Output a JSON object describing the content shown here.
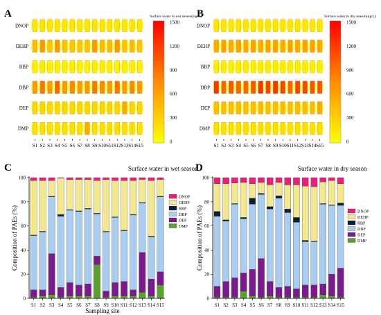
{
  "figure": {
    "sites": [
      "S1",
      "S2",
      "S3",
      "S4",
      "S5",
      "S6",
      "S7",
      "S8",
      "S9",
      "S10",
      "S11",
      "S12",
      "S13",
      "S14",
      "S15"
    ],
    "compounds_top_to_bottom": [
      "DNOP",
      "DEHP",
      "BBP",
      "DBP",
      "DEP",
      "DMP"
    ]
  },
  "chart_data": [
    {
      "panel": "A",
      "type": "heatmap",
      "colorbar_title": "Surface water in wet season(ng/L)",
      "colorbar_ticks": [
        "1500",
        "1200",
        "900",
        "600",
        "300",
        "0"
      ],
      "vmin": 0,
      "vmax": 1500,
      "rows": [
        "DNOP",
        "DEHP",
        "BBP",
        "DBP",
        "DEP",
        "DMP"
      ],
      "columns": [
        "S1",
        "S2",
        "S3",
        "S4",
        "S5",
        "S6",
        "S7",
        "S8",
        "S9",
        "S10",
        "S11",
        "S12",
        "S13",
        "S14",
        "S15"
      ],
      "values": [
        [
          150,
          150,
          150,
          150,
          150,
          150,
          150,
          150,
          150,
          150,
          150,
          150,
          150,
          150,
          150
        ],
        [
          400,
          600,
          350,
          600,
          350,
          350,
          350,
          350,
          600,
          400,
          400,
          600,
          350,
          400,
          350
        ],
        [
          100,
          100,
          100,
          100,
          100,
          100,
          100,
          100,
          100,
          100,
          100,
          100,
          100,
          100,
          100
        ],
        [
          600,
          800,
          600,
          900,
          600,
          700,
          600,
          600,
          800,
          700,
          600,
          800,
          600,
          700,
          600
        ],
        [
          250,
          250,
          250,
          250,
          250,
          250,
          250,
          250,
          250,
          250,
          250,
          250,
          500,
          250,
          250
        ],
        [
          200,
          200,
          200,
          200,
          200,
          200,
          200,
          500,
          200,
          200,
          200,
          200,
          200,
          200,
          200
        ]
      ]
    },
    {
      "panel": "B",
      "type": "heatmap",
      "colorbar_title": "Surface water in dry season(ng/L)",
      "colorbar_ticks": [
        "1500",
        "1200",
        "900",
        "600",
        "300",
        "0"
      ],
      "vmin": 0,
      "vmax": 1500,
      "rows": [
        "DNOP",
        "DEHP",
        "BBP",
        "DBP",
        "DEP",
        "DMP"
      ],
      "columns": [
        "S1",
        "S2",
        "S3",
        "S4",
        "S5",
        "S6",
        "S7",
        "S8",
        "S9",
        "S10",
        "S11",
        "S12",
        "S13",
        "S14",
        "S15"
      ],
      "values": [
        [
          150,
          150,
          150,
          150,
          150,
          150,
          150,
          150,
          150,
          150,
          150,
          150,
          150,
          150,
          150
        ],
        [
          500,
          550,
          500,
          550,
          500,
          550,
          500,
          550,
          550,
          500,
          550,
          500,
          550,
          550,
          500
        ],
        [
          100,
          100,
          100,
          100,
          100,
          100,
          100,
          100,
          100,
          100,
          100,
          100,
          100,
          100,
          100
        ],
        [
          1200,
          900,
          1000,
          900,
          900,
          1000,
          1200,
          1100,
          1200,
          1100,
          900,
          1100,
          1100,
          1000,
          1000
        ],
        [
          400,
          400,
          400,
          400,
          400,
          400,
          400,
          400,
          400,
          400,
          400,
          400,
          400,
          400,
          500
        ],
        [
          200,
          200,
          200,
          200,
          200,
          200,
          200,
          200,
          200,
          200,
          200,
          200,
          200,
          200,
          200
        ]
      ]
    },
    {
      "panel": "C",
      "type": "bar",
      "stacked": true,
      "title": "Surface water in wet season",
      "xlabel": "Sampling site",
      "ylabel": "Composition of PAEs (%)",
      "ylim": [
        0,
        100
      ],
      "yticks": [
        "0",
        "20",
        "40",
        "60",
        "80",
        "100"
      ],
      "categories": [
        "S1",
        "S2",
        "S3",
        "S4",
        "S5",
        "S6",
        "S7",
        "S8",
        "S9",
        "S10",
        "S11",
        "S12",
        "S13",
        "S14",
        "S15"
      ],
      "series": [
        {
          "name": "DMP",
          "color": "#5aa02c",
          "values": [
            1,
            2,
            3,
            1,
            2,
            2,
            2,
            28,
            1,
            2,
            2,
            2,
            5,
            2,
            11
          ]
        },
        {
          "name": "DEP",
          "color": "#7a1a8c",
          "values": [
            6,
            5,
            34,
            8,
            11,
            9,
            10,
            7,
            5,
            11,
            12,
            5,
            33,
            14,
            11
          ]
        },
        {
          "name": "DBP",
          "color": "#a9cdf0",
          "values": [
            45,
            48,
            47,
            59,
            60,
            61,
            62,
            35,
            49,
            54,
            42,
            62,
            41,
            35,
            62
          ]
        },
        {
          "name": "BBP",
          "color": "#0b1f33",
          "values": [
            0.5,
            0.5,
            0.5,
            1.5,
            0.5,
            0.5,
            0.5,
            0.5,
            0.5,
            0.5,
            0.5,
            0.5,
            0.5,
            0.5,
            0.5
          ]
        },
        {
          "name": "DEHP",
          "color": "#f4e88e",
          "values": [
            45,
            42,
            13,
            30,
            25,
            26,
            24,
            27,
            43,
            30,
            41,
            28,
            19,
            46,
            14
          ]
        },
        {
          "name": "DNOP",
          "color": "#e8207a",
          "values": [
            2.5,
            2.5,
            2.5,
            0.5,
            1.5,
            1.5,
            1.5,
            2.5,
            1.5,
            2.5,
            2.5,
            2.5,
            1.5,
            2.5,
            1.5
          ]
        }
      ],
      "legend": [
        "DNOP",
        "DEHP",
        "BBP",
        "DBP",
        "DEP",
        "DMP"
      ],
      "legend_position": "top-right"
    },
    {
      "panel": "D",
      "type": "bar",
      "stacked": true,
      "title": "Surface water in dry season",
      "xlabel": "Sampling site",
      "ylabel": "Composition of PAEs (%)",
      "ylim": [
        0,
        100
      ],
      "yticks": [
        "0",
        "20",
        "40",
        "60",
        "80",
        "100"
      ],
      "categories": [
        "S1",
        "S2",
        "S3",
        "S4",
        "S5",
        "S6",
        "S7",
        "S8",
        "S9",
        "S10",
        "S11",
        "S12",
        "S13",
        "S14",
        "S15"
      ],
      "series": [
        {
          "name": "DMP",
          "color": "#5aa02c",
          "values": [
            1,
            1,
            1,
            6,
            2,
            1,
            2,
            1,
            1,
            1,
            1,
            1,
            3,
            2,
            1
          ]
        },
        {
          "name": "DEP",
          "color": "#7a1a8c",
          "values": [
            9,
            13,
            16,
            15,
            22,
            32,
            12,
            8,
            9,
            7,
            10,
            10,
            9,
            18,
            24
          ]
        },
        {
          "name": "DBP",
          "color": "#a9cdf0",
          "values": [
            58,
            50,
            61,
            45,
            54,
            53,
            60,
            74,
            61,
            55,
            36,
            36,
            66,
            57,
            52
          ]
        },
        {
          "name": "BBP",
          "color": "#0b1f33",
          "values": [
            4,
            1,
            0.5,
            1,
            5,
            1,
            2,
            2,
            3,
            4,
            1,
            0.5,
            0.5,
            0.5,
            2
          ]
        },
        {
          "name": "DEHP",
          "color": "#f4e88e",
          "values": [
            23,
            30,
            17,
            29,
            12,
            9,
            18,
            11,
            20,
            27,
            45,
            45,
            18,
            20,
            16
          ]
        },
        {
          "name": "DNOP",
          "color": "#e8207a",
          "values": [
            5,
            5,
            4.5,
            4,
            5,
            4,
            6,
            4,
            6,
            6,
            7,
            7.5,
            3.5,
            2.5,
            5
          ]
        }
      ],
      "legend": [
        "DNOP",
        "DEHP",
        "BBP",
        "DBP",
        "DEP",
        "DMP"
      ],
      "legend_position": "top-right"
    }
  ],
  "panel_labels": [
    "A",
    "B",
    "C",
    "D"
  ]
}
